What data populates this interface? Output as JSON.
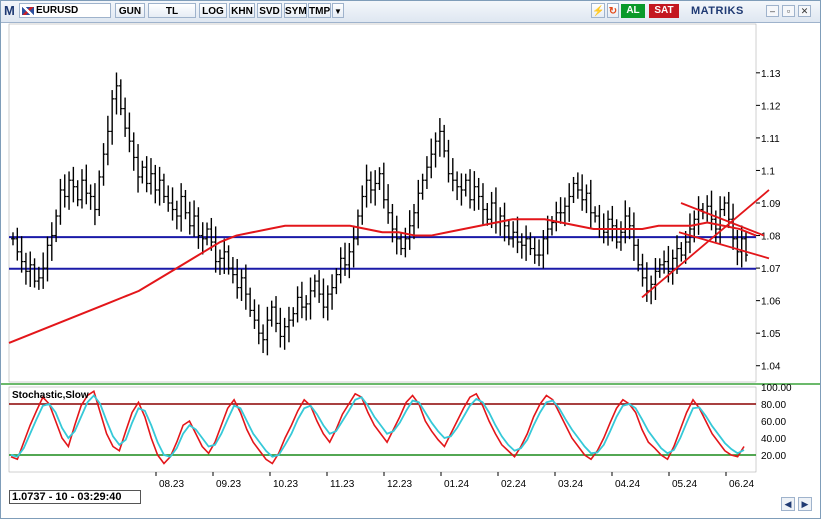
{
  "toolbar": {
    "logo": "M",
    "symbol": "EURUSD",
    "buttons": [
      "GUN",
      "TL",
      "LOG",
      "KHN",
      "SVD",
      "SYM",
      "TMP"
    ],
    "buy_label": "AL",
    "sell_label": "SAT",
    "brand": "MATRIKS",
    "window_controls": [
      "minimize-icon",
      "restore-icon",
      "close-icon"
    ]
  },
  "status": {
    "readout": "1.0737 - 10 - 03:29:40"
  },
  "colors": {
    "price_bars": "#000000",
    "moving_average": "#e3161a",
    "horizontal_lines": "#1a1aa8",
    "stoch_k": "#e3161a",
    "stoch_d": "#36c9d8",
    "stoch_upper": "#8b0000",
    "stoch_lower": "#1a8a1a"
  },
  "chart_data": [
    {
      "type": "line",
      "subtype": "ohlc",
      "title": "",
      "y_ticks": [
        1.04,
        1.05,
        1.06,
        1.07,
        1.08,
        1.09,
        1.1,
        1.11,
        1.12,
        1.13
      ],
      "ylim": [
        1.035,
        1.145
      ],
      "x_tick_labels": [
        "08.23",
        "09.23",
        "10.23",
        "11.23",
        "12.23",
        "01.24",
        "02.24",
        "03.24",
        "04.24",
        "05.24",
        "06.24"
      ],
      "close_series": [
        1.079,
        1.075,
        1.072,
        1.069,
        1.071,
        1.066,
        1.067,
        1.07,
        1.077,
        1.08,
        1.086,
        1.094,
        1.092,
        1.097,
        1.095,
        1.091,
        1.097,
        1.093,
        1.092,
        1.088,
        1.098,
        1.105,
        1.112,
        1.122,
        1.126,
        1.119,
        1.113,
        1.109,
        1.104,
        1.098,
        1.101,
        1.096,
        1.099,
        1.094,
        1.097,
        1.092,
        1.09,
        1.088,
        1.086,
        1.092,
        1.087,
        1.083,
        1.086,
        1.08,
        1.079,
        1.082,
        1.078,
        1.072,
        1.073,
        1.075,
        1.07,
        1.068,
        1.064,
        1.067,
        1.062,
        1.057,
        1.054,
        1.05,
        1.048,
        1.054,
        1.058,
        1.053,
        1.049,
        1.052,
        1.054,
        1.056,
        1.061,
        1.058,
        1.059,
        1.063,
        1.066,
        1.062,
        1.058,
        1.062,
        1.064,
        1.068,
        1.073,
        1.071,
        1.075,
        1.079,
        1.086,
        1.092,
        1.097,
        1.094,
        1.096,
        1.099,
        1.091,
        1.087,
        1.082,
        1.079,
        1.076,
        1.079,
        1.083,
        1.087,
        1.093,
        1.097,
        1.101,
        1.105,
        1.109,
        1.112,
        1.106,
        1.099,
        1.097,
        1.095,
        1.094,
        1.097,
        1.091,
        1.095,
        1.092,
        1.088,
        1.085,
        1.09,
        1.084,
        1.086,
        1.083,
        1.079,
        1.081,
        1.078,
        1.077,
        1.079,
        1.076,
        1.074,
        1.074,
        1.079,
        1.082,
        1.084,
        1.087,
        1.087,
        1.089,
        1.092,
        1.096,
        1.094,
        1.091,
        1.093,
        1.087,
        1.086,
        1.082,
        1.081,
        1.085,
        1.083,
        1.078,
        1.081,
        1.086,
        1.083,
        1.077,
        1.071,
        1.067,
        1.063,
        1.065,
        1.069,
        1.071,
        1.072,
        1.069,
        1.073,
        1.076,
        1.074,
        1.078,
        1.082,
        1.085,
        1.088,
        1.087,
        1.089,
        1.085,
        1.082,
        1.088,
        1.09,
        1.085,
        1.079,
        1.075,
        1.079,
        1.074
      ],
      "moving_average": [
        1.047,
        1.049,
        1.051,
        1.053,
        1.055,
        1.057,
        1.059,
        1.061,
        1.063,
        1.066,
        1.069,
        1.072,
        1.075,
        1.078,
        1.08,
        1.081,
        1.082,
        1.083,
        1.083,
        1.083,
        1.083,
        1.083,
        1.082,
        1.081,
        1.081,
        1.08,
        1.08,
        1.081,
        1.082,
        1.083,
        1.084,
        1.085,
        1.085,
        1.085,
        1.084,
        1.083,
        1.082,
        1.082,
        1.082,
        1.082,
        1.083,
        1.083,
        1.083,
        1.084,
        1.083,
        1.082,
        1.08
      ],
      "horizontal_lines": [
        1.0795,
        1.0698
      ],
      "trendlines": [
        {
          "from": [
            "04.24",
            1.061
          ],
          "to": [
            "06.24",
            1.094
          ]
        },
        {
          "from": [
            "05.24",
            1.09
          ],
          "to": [
            "06.24",
            1.08
          ]
        },
        {
          "from": [
            "05.24",
            1.081
          ],
          "to": [
            "06.24",
            1.073
          ]
        }
      ]
    },
    {
      "type": "line",
      "title": "Stochastic,Slow",
      "y_ticks": [
        20,
        40,
        60,
        80,
        100
      ],
      "ylim": [
        0,
        100
      ],
      "levels": [
        80,
        20
      ],
      "series": [
        {
          "values": [
            18,
            15,
            35,
            55,
            72,
            88,
            80,
            60,
            40,
            30,
            55,
            78,
            90,
            95,
            70,
            45,
            30,
            25,
            48,
            70,
            82,
            65,
            40,
            20,
            10,
            18,
            35,
            55,
            60,
            45,
            30,
            22,
            35,
            55,
            75,
            85,
            70,
            50,
            35,
            25,
            15,
            10,
            22,
            40,
            55,
            72,
            85,
            78,
            60,
            45,
            35,
            50,
            68,
            80,
            92,
            88,
            70,
            55,
            45,
            35,
            50,
            65,
            82,
            90,
            80,
            60,
            48,
            38,
            30,
            45,
            60,
            75,
            88,
            92,
            78,
            60,
            45,
            32,
            25,
            18,
            30,
            45,
            65,
            80,
            90,
            85,
            70,
            55,
            40,
            30,
            20,
            15,
            25,
            40,
            58,
            75,
            85,
            80,
            70,
            50,
            35,
            28,
            20,
            15,
            30,
            50,
            70,
            85,
            75,
            60,
            45,
            35,
            25,
            20,
            18,
            30
          ]
        },
        {
          "values": [
            20,
            18,
            28,
            45,
            62,
            78,
            80,
            70,
            52,
            40,
            48,
            65,
            82,
            90,
            80,
            60,
            42,
            32,
            38,
            58,
            75,
            72,
            55,
            35,
            20,
            18,
            28,
            45,
            55,
            50,
            40,
            30,
            32,
            45,
            62,
            78,
            75,
            60,
            45,
            35,
            25,
            18,
            20,
            32,
            45,
            62,
            75,
            78,
            68,
            55,
            45,
            48,
            60,
            72,
            85,
            88,
            78,
            65,
            55,
            45,
            48,
            58,
            72,
            84,
            82,
            70,
            58,
            48,
            40,
            42,
            52,
            65,
            78,
            86,
            82,
            70,
            55,
            42,
            32,
            25,
            28,
            38,
            55,
            70,
            82,
            84,
            75,
            62,
            50,
            40,
            30,
            22,
            23,
            32,
            48,
            65,
            78,
            80,
            75,
            62,
            48,
            38,
            28,
            22,
            26,
            40,
            58,
            75,
            76,
            66,
            54,
            44,
            34,
            27,
            22,
            26
          ]
        }
      ]
    }
  ]
}
